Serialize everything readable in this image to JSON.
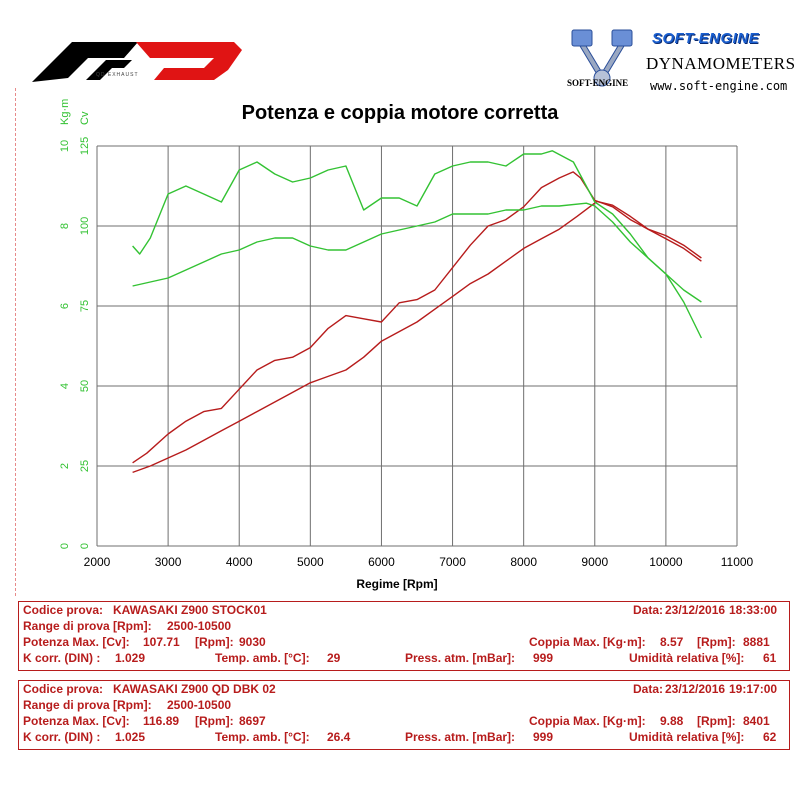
{
  "brand": {
    "left_logo_text": "QD EXHAUST",
    "right_brand_title": "SOFT-ENGINE",
    "right_brand_subtitle": "DYNAMOMETERS",
    "right_brand_url": "www.soft-engine.com",
    "right_logo_tag": "SOFT-ENGINE"
  },
  "colors": {
    "green": "#33c233",
    "red": "#b71c1c",
    "grid": "#6f6f6f",
    "info_text": "#b71c1c"
  },
  "chart_data": {
    "type": "line",
    "title": "Potenza e coppia motore corretta",
    "xlabel": "Regime [Rpm]",
    "xlim": [
      2000,
      11000
    ],
    "x_ticks": [
      "2000",
      "3000",
      "4000",
      "5000",
      "6000",
      "7000",
      "8000",
      "9000",
      "10000",
      "11000"
    ],
    "y_power": {
      "label": "Cv",
      "range": [
        0,
        125
      ],
      "ticks": [
        "0",
        "25",
        "50",
        "75",
        "100",
        "125"
      ]
    },
    "y_torque": {
      "label": "Kg·m",
      "range": [
        0,
        10
      ],
      "ticks": [
        "0",
        "2",
        "4",
        "6",
        "8",
        "10"
      ]
    },
    "grid": "on",
    "series": [
      {
        "name": "",
        "kind": "power",
        "axis": "power",
        "color": "#b71c1c",
        "x": [
          2500,
          2750,
          3000,
          3250,
          3500,
          3750,
          4000,
          4250,
          4500,
          4750,
          5000,
          5250,
          5500,
          5750,
          6000,
          6250,
          6500,
          6750,
          7000,
          7250,
          7500,
          7750,
          8000,
          8250,
          8500,
          8750,
          9030,
          9250,
          9500,
          9750,
          10000,
          10250,
          10500
        ],
        "y": [
          23,
          25,
          27.5,
          30,
          33,
          36,
          39,
          42,
          45,
          48,
          51,
          53,
          55,
          59,
          64,
          67,
          70,
          74,
          78,
          82,
          85,
          89,
          93,
          96,
          99,
          103,
          107.7,
          106.5,
          103,
          99,
          96,
          93,
          89
        ]
      },
      {
        "name": "",
        "kind": "power",
        "axis": "power",
        "color": "#b71c1c",
        "x": [
          2500,
          2700,
          3000,
          3250,
          3500,
          3750,
          4000,
          4250,
          4500,
          4750,
          5000,
          5250,
          5500,
          5750,
          6000,
          6250,
          6500,
          6750,
          7000,
          7250,
          7500,
          7750,
          8000,
          8250,
          8500,
          8697,
          8800,
          9000,
          9250,
          9500,
          9750,
          10000,
          10250,
          10500
        ],
        "y": [
          26,
          29,
          35,
          39,
          42,
          43,
          49,
          55,
          58,
          59,
          62,
          68,
          72,
          71,
          70,
          76,
          77,
          80,
          87,
          94,
          100,
          102,
          106,
          112,
          115,
          116.9,
          115,
          108,
          106,
          102,
          99,
          97,
          94,
          90
        ]
      },
      {
        "name": "",
        "kind": "torque",
        "axis": "torque",
        "color": "#33c233",
        "x": [
          2500,
          2750,
          3000,
          3250,
          3500,
          3750,
          4000,
          4250,
          4500,
          4750,
          5000,
          5250,
          5500,
          5750,
          6000,
          6250,
          6500,
          6750,
          7000,
          7250,
          7500,
          7750,
          8000,
          8250,
          8500,
          8881,
          9000,
          9250,
          9500,
          9750,
          10000,
          10250,
          10500
        ],
        "y": [
          6.5,
          6.6,
          6.7,
          6.9,
          7.1,
          7.3,
          7.4,
          7.6,
          7.7,
          7.7,
          7.5,
          7.4,
          7.4,
          7.6,
          7.8,
          7.9,
          8.0,
          8.1,
          8.3,
          8.3,
          8.3,
          8.4,
          8.4,
          8.5,
          8.5,
          8.57,
          8.5,
          8.1,
          7.6,
          7.2,
          6.8,
          6.4,
          6.1
        ]
      },
      {
        "name": "",
        "kind": "torque",
        "axis": "torque",
        "color": "#33c233",
        "x": [
          2500,
          2600,
          2750,
          3000,
          3250,
          3500,
          3750,
          4000,
          4250,
          4500,
          4750,
          5000,
          5250,
          5500,
          5750,
          6000,
          6250,
          6500,
          6750,
          7000,
          7250,
          7500,
          7750,
          8000,
          8250,
          8401,
          8700,
          9000,
          9250,
          9500,
          9750,
          10000,
          10250,
          10500
        ],
        "y": [
          7.5,
          7.3,
          7.7,
          8.8,
          9.0,
          8.8,
          8.6,
          9.4,
          9.6,
          9.3,
          9.1,
          9.2,
          9.4,
          9.5,
          8.4,
          8.7,
          8.7,
          8.5,
          9.3,
          9.5,
          9.6,
          9.6,
          9.5,
          9.8,
          9.8,
          9.88,
          9.6,
          8.6,
          8.3,
          7.8,
          7.2,
          6.8,
          6.1,
          5.2
        ]
      }
    ]
  },
  "tests": [
    {
      "codice_label": "Codice prova:",
      "codice": "KAWASAKI Z900 STOCK01",
      "data_label": "Data:",
      "data": "23/12/2016",
      "ora": "18:33:00",
      "range_label": "Range di prova [Rpm]:",
      "range": "2500-10500",
      "pot_label": "Potenza Max. [Cv]:",
      "pot": "107.71",
      "pot_rpm_label": "[Rpm]:",
      "pot_rpm": "9030",
      "coppia_label": "Coppia Max. [Kg·m]:",
      "coppia": "8.57",
      "coppia_rpm_label": "[Rpm]:",
      "coppia_rpm": "8881",
      "k_label": "K corr. (DIN) :",
      "k": "1.029",
      "temp_label": "Temp. amb. [°C]:",
      "temp": "29",
      "press_label": "Press. atm. [mBar]:",
      "press": "999",
      "umid_label": "Umidità relativa [%]:",
      "umid": "61"
    },
    {
      "codice_label": "Codice prova:",
      "codice": "KAWASAKI Z900 QD DBK 02",
      "data_label": "Data:",
      "data": "23/12/2016",
      "ora": "19:17:00",
      "range_label": "Range di prova [Rpm]:",
      "range": "2500-10500",
      "pot_label": "Potenza Max. [Cv]:",
      "pot": "116.89",
      "pot_rpm_label": "[Rpm]:",
      "pot_rpm": "8697",
      "coppia_label": "Coppia Max. [Kg·m]:",
      "coppia": "9.88",
      "coppia_rpm_label": "[Rpm]:",
      "coppia_rpm": "8401",
      "k_label": "K corr. (DIN) :",
      "k": "1.025",
      "temp_label": "Temp. amb. [°C]:",
      "temp": "26.4",
      "press_label": "Press. atm. [mBar]:",
      "press": "999",
      "umid_label": "Umidità relativa [%]:",
      "umid": "62"
    }
  ]
}
